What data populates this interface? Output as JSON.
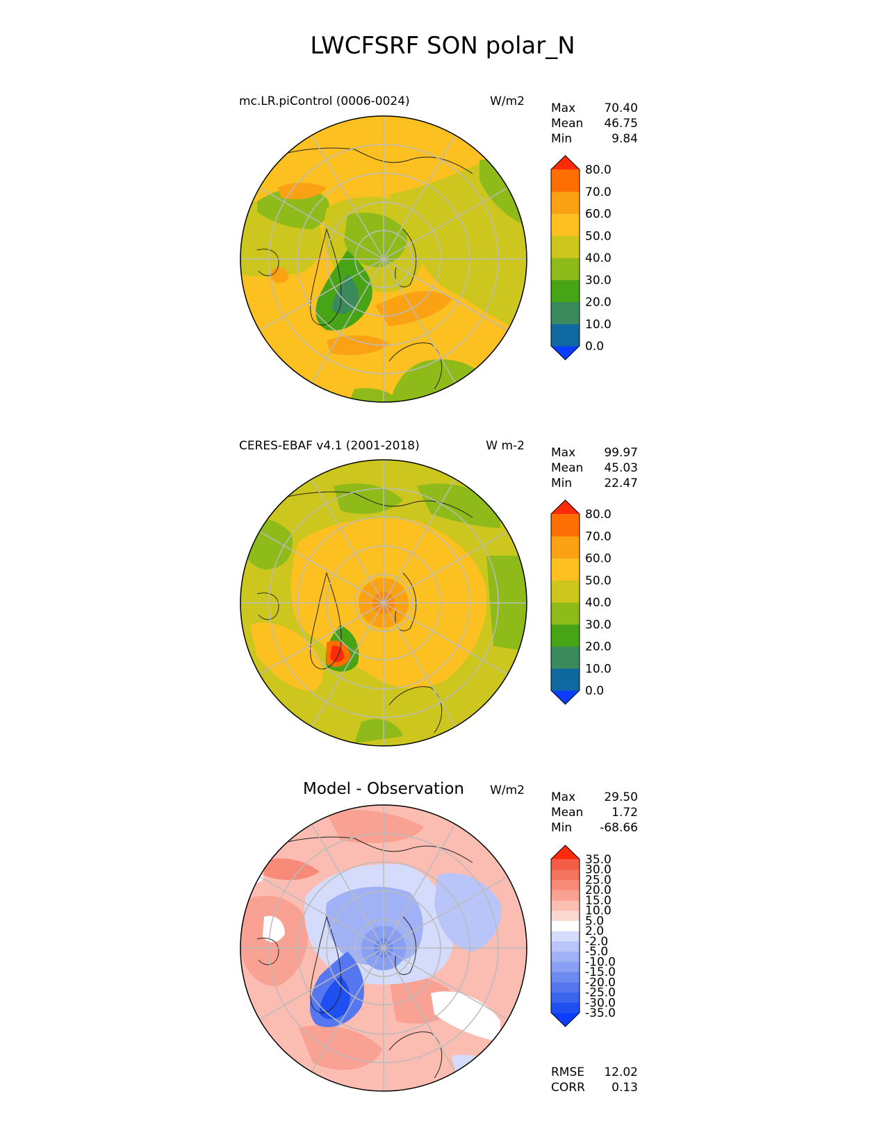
{
  "figure": {
    "title": "LWCFSRF SON polar_N"
  },
  "colors": {
    "main": [
      "#0b3dff",
      "#1068a0",
      "#3a8a5e",
      "#46a416",
      "#8ebb1a",
      "#cdc61e",
      "#fcc121",
      "#fba114",
      "#fd6e04",
      "#fe2b0a"
    ],
    "diff": [
      "#0b3dff",
      "#1f4ff0",
      "#3c65ee",
      "#5677f0",
      "#6e8bf2",
      "#889ff4",
      "#a0b1f6",
      "#b9c5f9",
      "#d5dcfb",
      "#ffffff",
      "#fcd8d2",
      "#fbbcb2",
      "#f9a293",
      "#f78a79",
      "#f5735f",
      "#f35c47",
      "#f1442d",
      "#ef2a14",
      "#fe2b0a"
    ]
  },
  "chart_data": [
    {
      "type": "heatmap",
      "projection": "north polar stereographic",
      "title": "mc.LR.piControl (0006-0024)",
      "units": "W/m2",
      "stats": [
        {
          "label": "Max",
          "value": "70.40"
        },
        {
          "label": "Mean",
          "value": "46.75"
        },
        {
          "label": "Min",
          "value": "9.84"
        }
      ],
      "levels": [
        0,
        10,
        20,
        30,
        40,
        50,
        60,
        70,
        80
      ],
      "tick_labels": [
        "0.0",
        "10.0",
        "20.0",
        "30.0",
        "40.0",
        "50.0",
        "60.0",
        "70.0",
        "80.0"
      ],
      "extend": "both"
    },
    {
      "type": "heatmap",
      "projection": "north polar stereographic",
      "title": "CERES-EBAF v4.1 (2001-2018)",
      "units": "W m-2",
      "stats": [
        {
          "label": "Max",
          "value": "99.97"
        },
        {
          "label": "Mean",
          "value": "45.03"
        },
        {
          "label": "Min",
          "value": "22.47"
        }
      ],
      "levels": [
        0,
        10,
        20,
        30,
        40,
        50,
        60,
        70,
        80
      ],
      "tick_labels": [
        "0.0",
        "10.0",
        "20.0",
        "30.0",
        "40.0",
        "50.0",
        "60.0",
        "70.0",
        "80.0"
      ],
      "extend": "both"
    },
    {
      "type": "heatmap",
      "projection": "north polar stereographic",
      "title": "Model - Observation",
      "units": "W/m2",
      "stats": [
        {
          "label": "Max",
          "value": "29.50"
        },
        {
          "label": "Mean",
          "value": "1.72"
        },
        {
          "label": "Min",
          "value": "-68.66"
        }
      ],
      "levels": [
        -35,
        -30,
        -25,
        -20,
        -15,
        -10,
        -5,
        -2,
        2,
        5,
        10,
        15,
        20,
        25,
        30,
        35
      ],
      "tick_labels": [
        "-35.0",
        "-30.0",
        "-25.0",
        "-20.0",
        "-15.0",
        "-10.0",
        "-5.0",
        "-2.0",
        "2.0",
        "5.0",
        "10.0",
        "15.0",
        "20.0",
        "25.0",
        "30.0",
        "35.0"
      ],
      "extend": "both",
      "metrics": [
        {
          "label": "RMSE",
          "value": "12.02"
        },
        {
          "label": "CORR",
          "value": "0.13"
        }
      ]
    }
  ]
}
